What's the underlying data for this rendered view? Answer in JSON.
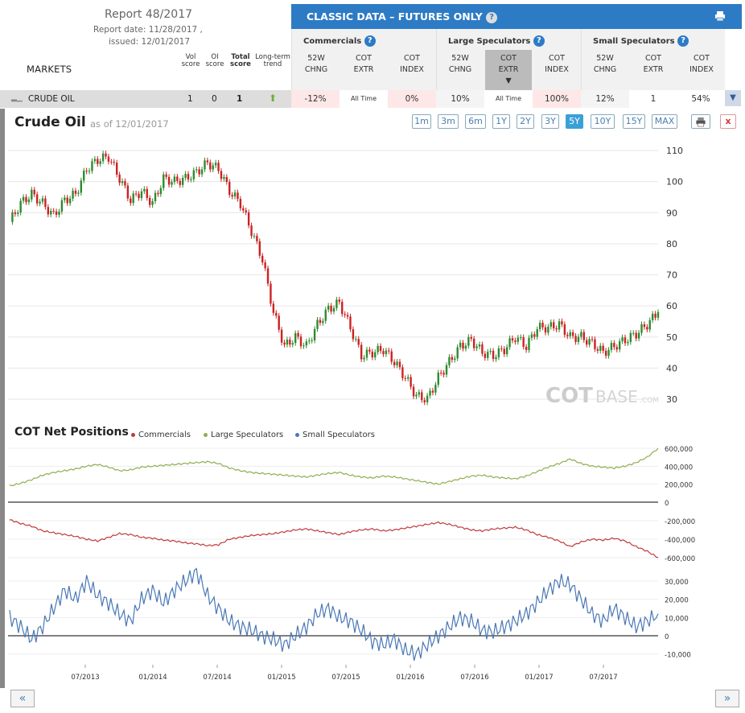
{
  "report": {
    "title": "Report 48/2017",
    "report_date": "Report date: 11/28/2017 ,",
    "issued": "issued: 12/01/2017"
  },
  "markets_label": "MARKETS",
  "score_headers": {
    "vol": [
      "Vol",
      "score"
    ],
    "oi": [
      "OI",
      "score"
    ],
    "total": [
      "Total",
      "score"
    ],
    "trend": [
      "Long-term",
      "trend"
    ]
  },
  "classic": {
    "title": "CLASSIC DATA – FUTURES ONLY",
    "help": "?"
  },
  "groups": [
    {
      "title": "Commercials",
      "cols": [
        [
          "52W",
          "CHNG"
        ],
        [
          "COT",
          "EXTR"
        ],
        [
          "COT",
          "INDEX"
        ]
      ]
    },
    {
      "title": "Large Speculators",
      "cols": [
        [
          "52W",
          "CHNG"
        ],
        [
          "COT",
          "EXTR"
        ],
        [
          "COT",
          "INDEX"
        ]
      ]
    },
    {
      "title": "Small Speculators",
      "cols": [
        [
          "52W",
          "CHNG"
        ],
        [
          "COT",
          "EXTR"
        ],
        [
          "COT",
          "INDEX"
        ]
      ]
    }
  ],
  "row": {
    "market": "CRUDE OIL",
    "vol": "1",
    "oi": "0",
    "total": "1",
    "values": [
      "-12%",
      "All Time",
      "0%",
      "10%",
      "All Time",
      "100%",
      "12%",
      "1",
      "54%"
    ]
  },
  "chart": {
    "title": "Crude Oil",
    "asof": "as of 12/01/2017",
    "watermark_a": "COT",
    "watermark_b": "BASE",
    "watermark_c": ".COM"
  },
  "ranges": [
    "1m",
    "3m",
    "6m",
    "1Y",
    "2Y",
    "3Y",
    "5Y",
    "10Y",
    "15Y",
    "MAX"
  ],
  "active_range": "5Y",
  "cot": {
    "title": "COT Net Positions",
    "legend": [
      "Commercials",
      "Large Speculators",
      "Small Speculators"
    ]
  },
  "colors": {
    "accent": "#2d7bc5",
    "commercials": "#c0393b",
    "large": "#8fae4f",
    "small": "#4a78b5",
    "up": "#2e8b2e",
    "down": "#cc2222"
  },
  "nav": {
    "prev": "«",
    "next": "»",
    "close": "x"
  },
  "chart_data": [
    {
      "type": "line",
      "title": "Crude Oil",
      "ylim": [
        25,
        112
      ],
      "yticks": [
        110,
        100,
        90,
        80,
        70,
        60,
        50,
        40,
        30
      ],
      "x": [
        "2012-12",
        "2013-01",
        "2013-02",
        "2013-03",
        "2013-04",
        "2013-05",
        "2013-06",
        "2013-07",
        "2013-08",
        "2013-09",
        "2013-10",
        "2013-11",
        "2013-12",
        "2014-01",
        "2014-02",
        "2014-03",
        "2014-04",
        "2014-05",
        "2014-06",
        "2014-07",
        "2014-08",
        "2014-09",
        "2014-10",
        "2014-11",
        "2014-12",
        "2015-01",
        "2015-02",
        "2015-03",
        "2015-04",
        "2015-05",
        "2015-06",
        "2015-07",
        "2015-08",
        "2015-09",
        "2015-10",
        "2015-11",
        "2015-12",
        "2016-01",
        "2016-02",
        "2016-03",
        "2016-04",
        "2016-05",
        "2016-06",
        "2016-07",
        "2016-08",
        "2016-09",
        "2016-10",
        "2016-11",
        "2016-12",
        "2017-01",
        "2017-02",
        "2017-03",
        "2017-04",
        "2017-05",
        "2017-06",
        "2017-07",
        "2017-08",
        "2017-09",
        "2017-10",
        "2017-11"
      ],
      "series": [
        {
          "name": "Crude Oil",
          "values": [
            87,
            93,
            96,
            93,
            89,
            94,
            96,
            104,
            107,
            108,
            101,
            94,
            97,
            93,
            101,
            100,
            101,
            103,
            106,
            104,
            97,
            93,
            84,
            75,
            58,
            47,
            50,
            47,
            54,
            59,
            61,
            53,
            44,
            45,
            46,
            42,
            37,
            31,
            30,
            37,
            42,
            47,
            49,
            45,
            44,
            46,
            50,
            47,
            53,
            53,
            54,
            50,
            50,
            48,
            45,
            47,
            49,
            51,
            54,
            58
          ]
        }
      ]
    },
    {
      "type": "line",
      "title": "COT Net Positions",
      "xlabel": "",
      "ylabel": "",
      "xticks": [
        "07/2013",
        "01/2014",
        "07/2014",
        "01/2015",
        "07/2015",
        "01/2016",
        "07/2016",
        "01/2017",
        "07/2017"
      ],
      "yticks": [
        600000,
        400000,
        200000,
        0,
        -200000,
        -400000,
        -600000
      ],
      "series": [
        {
          "name": "Commercials",
          "values": [
            -190000,
            -230000,
            -260000,
            -310000,
            -330000,
            -350000,
            -370000,
            -400000,
            -420000,
            -380000,
            -340000,
            -350000,
            -380000,
            -390000,
            -410000,
            -420000,
            -440000,
            -450000,
            -470000,
            -460000,
            -400000,
            -380000,
            -360000,
            -350000,
            -340000,
            -320000,
            -300000,
            -290000,
            -310000,
            -330000,
            -350000,
            -320000,
            -300000,
            -290000,
            -310000,
            -300000,
            -280000,
            -260000,
            -240000,
            -220000,
            -240000,
            -270000,
            -300000,
            -310000,
            -290000,
            -280000,
            -270000,
            -300000,
            -350000,
            -380000,
            -420000,
            -480000,
            -430000,
            -400000,
            -410000,
            -390000,
            -420000,
            -480000,
            -530000,
            -600000
          ]
        },
        {
          "name": "Large Speculators",
          "values": [
            180000,
            210000,
            250000,
            300000,
            330000,
            350000,
            370000,
            400000,
            420000,
            390000,
            350000,
            360000,
            390000,
            400000,
            410000,
            420000,
            430000,
            440000,
            450000,
            430000,
            380000,
            350000,
            330000,
            320000,
            310000,
            300000,
            290000,
            280000,
            300000,
            320000,
            330000,
            300000,
            280000,
            270000,
            290000,
            280000,
            260000,
            240000,
            220000,
            200000,
            230000,
            260000,
            290000,
            300000,
            280000,
            270000,
            260000,
            290000,
            340000,
            390000,
            430000,
            480000,
            430000,
            400000,
            390000,
            380000,
            400000,
            440000,
            500000,
            600000
          ]
        },
        {
          "name": "Small Speculators",
          "values": [
            10000,
            5000,
            -2000,
            5000,
            15000,
            25000,
            20000,
            30000,
            22000,
            18000,
            12000,
            8000,
            20000,
            25000,
            18000,
            25000,
            30000,
            35000,
            22000,
            15000,
            8000,
            5000,
            3000,
            0,
            -2000,
            -5000,
            0,
            5000,
            12000,
            15000,
            10000,
            8000,
            3000,
            -3000,
            -5000,
            -2000,
            -8000,
            -10000,
            -5000,
            0,
            5000,
            10000,
            8000,
            3000,
            2000,
            5000,
            8000,
            12000,
            18000,
            25000,
            30000,
            28000,
            20000,
            12000,
            8000,
            15000,
            10000,
            5000,
            8000,
            12000
          ]
        }
      ]
    }
  ]
}
